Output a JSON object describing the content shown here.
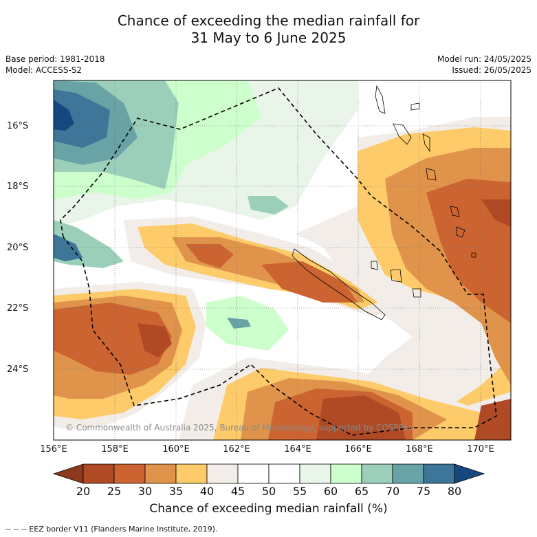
{
  "title_line1": "Chance of exceeding the median rainfall for",
  "title_line2": "31 May to 6 June 2025",
  "base_period": "Base period: 1981-2018",
  "model": "Model: ACCESS-S2",
  "model_run": "Model run: 24/05/2025",
  "issued": "Issued: 26/05/2025",
  "copyright": "© Commonwealth of Australia 2025, Bureau of Meteorology, supported by COSPPac",
  "lat_ticks": [
    "16°S",
    "18°S",
    "20°S",
    "22°S",
    "24°S"
  ],
  "lon_ticks": [
    "156°E",
    "158°E",
    "160°E",
    "162°E",
    "164°E",
    "166°E",
    "168°E",
    "170°E"
  ],
  "colorbar": {
    "ticks": [
      "20",
      "25",
      "30",
      "35",
      "40",
      "45",
      "50",
      "55",
      "60",
      "65",
      "70",
      "75",
      "80"
    ],
    "colors": [
      "#8b3a1e",
      "#b04a25",
      "#cc6432",
      "#e0934a",
      "#fecb6a",
      "#f2ede8",
      "#ffffff",
      "#ffffff",
      "#e8f5e8",
      "#ccffcc",
      "#9ccfba",
      "#6aa3a6",
      "#3d7699",
      "#15487f"
    ],
    "label": "Chance of exceeding median rainfall (%)"
  },
  "footer": "--  --  -- EEZ border V11 (Flanders Marine Institute, 2019)."
}
